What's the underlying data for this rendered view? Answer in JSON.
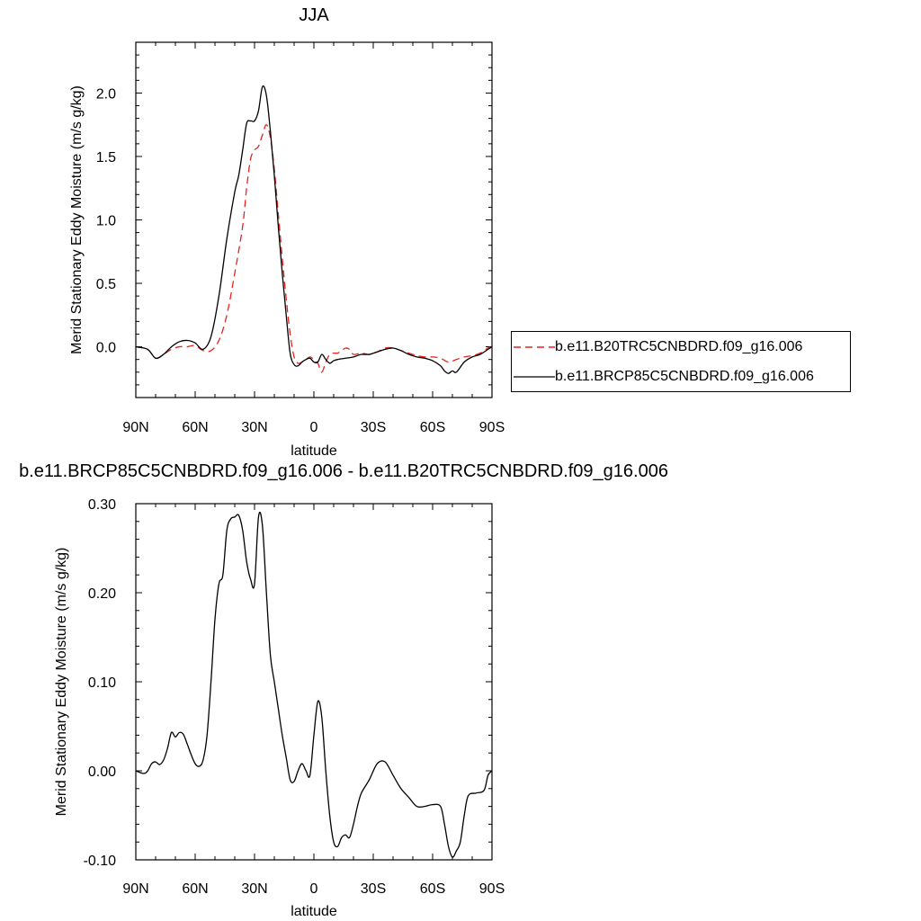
{
  "chart_data": [
    {
      "type": "line",
      "title": "JJA",
      "xlabel": "latitude",
      "ylabel": "Merid Stationary Eddy Moisture (m/s g/kg)",
      "x_ticks": [
        "90N",
        "60N",
        "30N",
        "0",
        "30S",
        "60S",
        "90S"
      ],
      "y_ticks": [
        "0.0",
        "0.5",
        "1.0",
        "1.5",
        "2.0"
      ],
      "xlim": [
        90,
        -90
      ],
      "ylim": [
        -0.4,
        2.4
      ],
      "legend_placement": "right",
      "series": [
        {
          "name": "b.e11.B20TRC5CNBDRD.f09_g16.006",
          "color": "#e8211e",
          "style": "dashed",
          "x": [
            90,
            84,
            80,
            76,
            72,
            68,
            64,
            60,
            56,
            52,
            48,
            44,
            40,
            36,
            34,
            32,
            30,
            28,
            26,
            24,
            22,
            20,
            18,
            16,
            14,
            12,
            10,
            8,
            6,
            4,
            2,
            0,
            -2,
            -4,
            -6,
            -8,
            -10,
            -12,
            -14,
            -16,
            -18,
            -20,
            -24,
            -28,
            -32,
            -36,
            -40,
            -44,
            -48,
            -52,
            -56,
            -60,
            -64,
            -68,
            -72,
            -76,
            -80,
            -84,
            -88,
            -90
          ],
          "y": [
            0.0,
            -0.02,
            -0.09,
            -0.06,
            -0.02,
            0.0,
            0.0,
            0.01,
            -0.03,
            -0.03,
            0.05,
            0.25,
            0.58,
            0.95,
            1.25,
            1.48,
            1.55,
            1.58,
            1.67,
            1.75,
            1.65,
            1.4,
            1.05,
            0.7,
            0.38,
            0.1,
            -0.08,
            -0.13,
            -0.12,
            -0.1,
            -0.08,
            -0.1,
            -0.13,
            -0.2,
            -0.12,
            -0.06,
            -0.05,
            -0.05,
            -0.03,
            -0.01,
            -0.02,
            -0.06,
            -0.05,
            -0.06,
            -0.04,
            -0.01,
            -0.01,
            -0.03,
            -0.05,
            -0.07,
            -0.08,
            -0.08,
            -0.09,
            -0.12,
            -0.1,
            -0.08,
            -0.07,
            -0.05,
            -0.01,
            0.0
          ]
        },
        {
          "name": "b.e11.BRCP85C5CNBDRD.f09_g16.006",
          "color": "#000000",
          "style": "solid",
          "x": [
            90,
            84,
            80,
            76,
            72,
            68,
            64,
            60,
            56,
            52,
            48,
            44,
            40,
            38,
            36,
            34,
            32,
            30,
            28,
            26,
            24,
            22,
            20,
            18,
            16,
            14,
            12,
            10,
            8,
            6,
            4,
            2,
            0,
            -2,
            -4,
            -6,
            -8,
            -10,
            -12,
            -16,
            -20,
            -24,
            -28,
            -32,
            -36,
            -40,
            -44,
            -48,
            -52,
            -56,
            -60,
            -64,
            -66,
            -68,
            -70,
            -72,
            -76,
            -80,
            -84,
            -88,
            -90
          ],
          "y": [
            0.0,
            -0.02,
            -0.09,
            -0.06,
            0.0,
            0.04,
            0.05,
            0.03,
            -0.02,
            0.08,
            0.4,
            0.85,
            1.22,
            1.35,
            1.55,
            1.76,
            1.78,
            1.78,
            1.86,
            2.05,
            1.98,
            1.7,
            1.35,
            0.95,
            0.58,
            0.25,
            -0.05,
            -0.14,
            -0.15,
            -0.12,
            -0.1,
            -0.09,
            -0.12,
            -0.12,
            -0.06,
            -0.1,
            -0.13,
            -0.11,
            -0.1,
            -0.09,
            -0.08,
            -0.06,
            -0.06,
            -0.04,
            -0.02,
            -0.01,
            -0.03,
            -0.06,
            -0.08,
            -0.09,
            -0.11,
            -0.15,
            -0.19,
            -0.21,
            -0.19,
            -0.2,
            -0.12,
            -0.08,
            -0.06,
            -0.02,
            0.0
          ]
        }
      ]
    },
    {
      "type": "line",
      "title": "b.e11.BRCP85C5CNBDRD.f09_g16.006 - b.e11.B20TRC5CNBDRD.f09_g16.006",
      "xlabel": "latitude",
      "ylabel": "Merid Stationary Eddy Moisture (m/s g/kg)",
      "x_ticks": [
        "90N",
        "60N",
        "30N",
        "0",
        "30S",
        "60S",
        "90S"
      ],
      "y_ticks": [
        "-0.10",
        "0.00",
        "0.10",
        "0.20",
        "0.30"
      ],
      "xlim": [
        90,
        -90
      ],
      "ylim": [
        -0.1,
        0.3
      ],
      "series": [
        {
          "color": "#000000",
          "style": "solid",
          "x": [
            90,
            86,
            84,
            82,
            80,
            78,
            76,
            74,
            72,
            70,
            68,
            66,
            64,
            62,
            60,
            58,
            56,
            54,
            52,
            50,
            48,
            46,
            44,
            42,
            40,
            38,
            36,
            34,
            32,
            30,
            28,
            26,
            24,
            22,
            20,
            18,
            16,
            14,
            12,
            10,
            8,
            6,
            4,
            2,
            0,
            -2,
            -4,
            -6,
            -8,
            -10,
            -12,
            -14,
            -16,
            -18,
            -20,
            -22,
            -24,
            -28,
            -32,
            -36,
            -40,
            -44,
            -48,
            -52,
            -56,
            -60,
            -64,
            -66,
            -68,
            -70,
            -72,
            -74,
            -76,
            -78,
            -82,
            -86,
            -88,
            -90
          ],
          "y": [
            0.0,
            -0.003,
            0.0,
            0.008,
            0.01,
            0.007,
            0.012,
            0.025,
            0.043,
            0.038,
            0.043,
            0.041,
            0.03,
            0.018,
            0.008,
            0.005,
            0.012,
            0.04,
            0.1,
            0.17,
            0.21,
            0.22,
            0.27,
            0.283,
            0.285,
            0.287,
            0.27,
            0.235,
            0.215,
            0.21,
            0.285,
            0.275,
            0.2,
            0.13,
            0.1,
            0.07,
            0.04,
            0.015,
            -0.01,
            -0.012,
            0.0,
            0.008,
            0.0,
            -0.005,
            0.04,
            0.078,
            0.06,
            0.0,
            -0.05,
            -0.08,
            -0.085,
            -0.075,
            -0.072,
            -0.075,
            -0.06,
            -0.04,
            -0.025,
            -0.01,
            0.008,
            0.01,
            -0.005,
            -0.02,
            -0.03,
            -0.04,
            -0.04,
            -0.038,
            -0.04,
            -0.06,
            -0.085,
            -0.097,
            -0.09,
            -0.08,
            -0.05,
            -0.028,
            -0.025,
            -0.022,
            -0.005,
            0.0
          ]
        }
      ]
    }
  ]
}
